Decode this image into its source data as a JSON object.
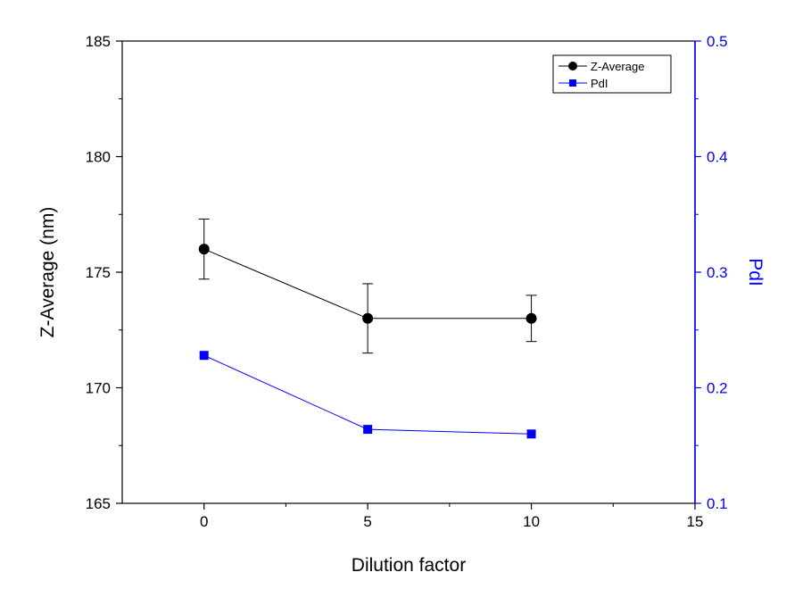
{
  "chart_data": {
    "type": "line",
    "title": "",
    "xlabel": "Dilution factor",
    "ylabel": "Z-Average (nm)",
    "y2label": "PdI",
    "xlim": [
      -2.5,
      15
    ],
    "ylim": [
      165,
      185
    ],
    "y2lim": [
      0.1,
      0.5
    ],
    "xticks": [
      0,
      5,
      10,
      15
    ],
    "xtick_labels": [
      "0",
      "5",
      "10",
      "15"
    ],
    "yticks": [
      165,
      170,
      175,
      180,
      185
    ],
    "ytick_labels": [
      "165",
      "170",
      "175",
      "180",
      "185"
    ],
    "y2ticks": [
      0.1,
      0.2,
      0.3,
      0.4,
      0.5
    ],
    "y2tick_labels": [
      "0.1",
      "0.2",
      "0.3",
      "0.4",
      "0.5"
    ],
    "grid": false,
    "legend_position": "top-right",
    "series": [
      {
        "name": "Z-Average",
        "axis": "left",
        "color": "#000000",
        "marker": "circle",
        "x": [
          0,
          5,
          10
        ],
        "values": [
          176.0,
          173.0,
          173.0
        ],
        "error": [
          1.3,
          1.5,
          1.0
        ]
      },
      {
        "name": "PdI",
        "axis": "right",
        "color": "#0000ff",
        "marker": "square",
        "x": [
          0,
          5,
          10
        ],
        "values": [
          0.228,
          0.164,
          0.16
        ]
      }
    ]
  }
}
